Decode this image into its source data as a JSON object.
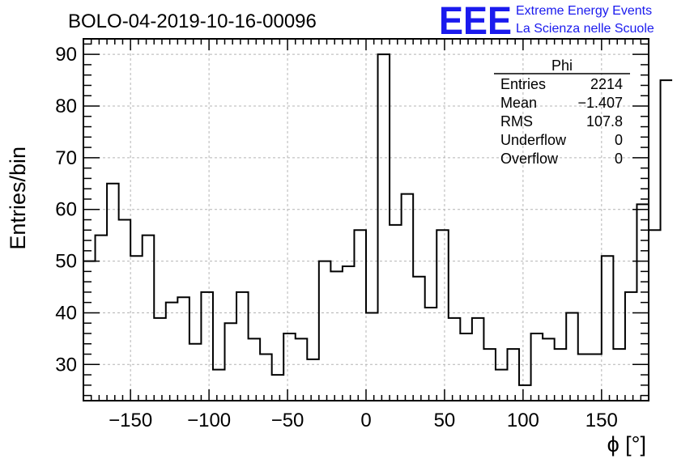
{
  "title": "BOLO-04-2019-10-16-00096",
  "logo": {
    "mark": "EEE",
    "line1": "Extreme Energy Events",
    "line2": "La Scienza nelle Scuole",
    "color": "#1a1aee"
  },
  "stats": {
    "name": "Phi",
    "rows": [
      {
        "label": "Entries",
        "value": "2214"
      },
      {
        "label": "Mean",
        "value": "−1.407"
      },
      {
        "label": "RMS",
        "value": "107.8"
      },
      {
        "label": "Underflow",
        "value": "0"
      },
      {
        "label": "Overflow",
        "value": "0"
      }
    ]
  },
  "chart_data": {
    "type": "bar",
    "style": "step-histogram",
    "title": "BOLO-04-2019-10-16-00096",
    "xlabel": "ϕ [°]",
    "ylabel": "Entries/bin",
    "xlim": [
      -180,
      180
    ],
    "ylim": [
      23,
      93
    ],
    "bin_width": 7.5,
    "x_ticks": [
      -150,
      -100,
      -50,
      0,
      50,
      100,
      150
    ],
    "x_tick_labels": [
      "−150",
      "−100",
      "−50",
      "0",
      "50",
      "100",
      "150"
    ],
    "y_ticks": [
      30,
      40,
      50,
      60,
      70,
      80,
      90
    ],
    "y_tick_labels": [
      "30",
      "40",
      "50",
      "60",
      "70",
      "80",
      "90"
    ],
    "grid": true,
    "values": [
      50,
      55,
      65,
      58,
      51,
      55,
      39,
      42,
      43,
      34,
      44,
      29,
      38,
      44,
      35,
      32,
      28,
      36,
      35,
      31,
      50,
      48,
      49,
      56,
      40,
      90,
      57,
      63,
      47,
      41,
      56,
      39,
      36,
      39,
      33,
      29,
      33,
      26,
      36,
      35,
      33,
      40,
      32,
      32,
      51,
      33,
      44,
      61,
      56,
      85
    ]
  }
}
